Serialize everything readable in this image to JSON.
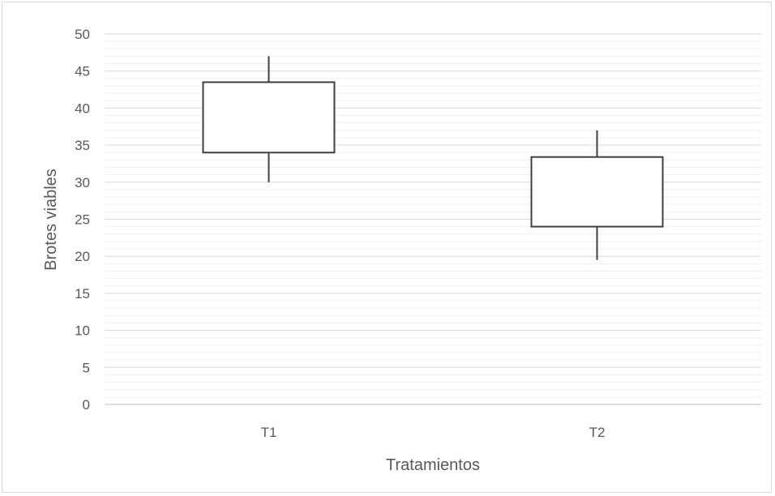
{
  "chart_data": {
    "type": "box",
    "title": "",
    "xlabel": "Tratamientos",
    "ylabel": "Brotes  viables",
    "ylim": [
      0,
      50
    ],
    "y_major_step": 5,
    "y_minor_step": 1,
    "y_ticks": [
      "0",
      "5",
      "10",
      "15",
      "20",
      "25",
      "30",
      "35",
      "40",
      "45",
      "50"
    ],
    "grid": true,
    "legend": "none",
    "categories": [
      "T1",
      "T2"
    ],
    "boxes": [
      {
        "category": "T1",
        "whisker_low": 30,
        "q1": 34,
        "q3": 43.5,
        "whisker_high": 47
      },
      {
        "category": "T2",
        "whisker_low": 19.5,
        "q1": 24,
        "q3": 33.4,
        "whisker_high": 37
      }
    ]
  },
  "colors": {
    "box_stroke": "#404040",
    "box_fill": "#ffffff",
    "major_grid": "#d9d9d9",
    "minor_grid": "#efefef",
    "axis_line": "#bfbfbf",
    "text": "#595959"
  }
}
